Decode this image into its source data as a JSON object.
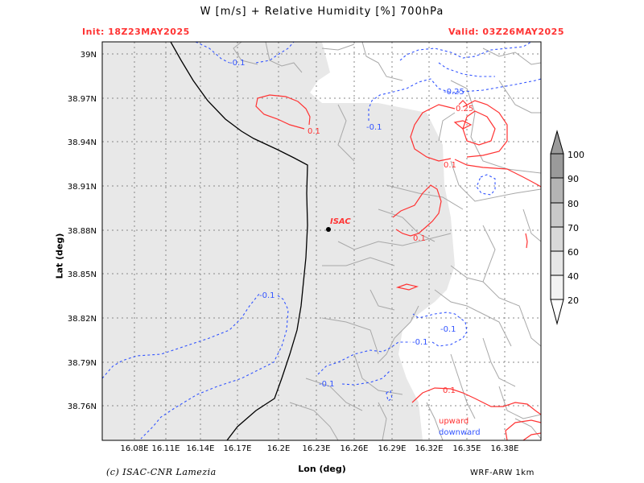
{
  "header": {
    "title": "W [m/s] + Relative Humidity [%] 700hPa",
    "init": "Init: 18Z23MAY2025",
    "valid": "Valid: 03Z26MAY2025"
  },
  "axes": {
    "xlabel": "Lon (deg)",
    "ylabel": "Lat (deg)",
    "x_ticks": [
      "16.08E",
      "16.11E",
      "16.14E",
      "16.17E",
      "16.2E",
      "16.23E",
      "16.26E",
      "16.29E",
      "16.32E",
      "16.35E",
      "16.38E"
    ],
    "y_ticks": [
      "39N",
      "38.97N",
      "38.94N",
      "38.91N",
      "38.88N",
      "38.85N",
      "38.82N",
      "38.79N",
      "38.76N"
    ]
  },
  "map": {
    "station_label": "ISAC",
    "contour_labels": [
      {
        "text": "-0.1",
        "color": "#3355ff"
      },
      {
        "text": "-0.1",
        "color": "#3355ff"
      },
      {
        "text": "-0.25",
        "color": "#3355ff"
      },
      {
        "text": "0.25",
        "color": "#ff3333"
      },
      {
        "text": "0.1",
        "color": "#ff3333"
      },
      {
        "text": "0.1",
        "color": "#ff3333"
      },
      {
        "text": "0.1",
        "color": "#ff3333"
      },
      {
        "text": "-0.1",
        "color": "#3355ff"
      },
      {
        "text": "-0.1",
        "color": "#3355ff"
      },
      {
        "text": "-0.1",
        "color": "#3355ff"
      },
      {
        "text": "-0.1",
        "color": "#3355ff"
      },
      {
        "text": "0.1",
        "color": "#ff3333"
      }
    ],
    "legend_up": "upward",
    "legend_down": "downward",
    "colors": {
      "upward": "#ff3333",
      "downward": "#3355ff",
      "humid_fill": "#e8e8e8"
    }
  },
  "colorbar": {
    "levels": [
      "100",
      "90",
      "80",
      "70",
      "60",
      "40",
      "20"
    ]
  },
  "footer": {
    "credit": "(c) ISAC-CNR Lamezia",
    "model": "WRF-ARW 1km"
  }
}
